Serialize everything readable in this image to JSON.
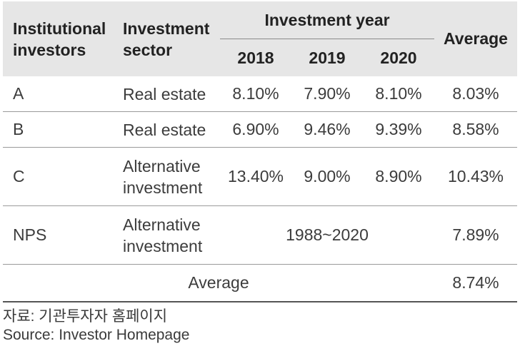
{
  "table": {
    "header": {
      "investors": "Institutional investors",
      "sector": "Investment sector",
      "year_group": "Investment year",
      "years": [
        "2018",
        "2019",
        "2020"
      ],
      "average": "Average"
    },
    "rows": [
      {
        "investor": "A",
        "sector": "Real estate",
        "y2018": "8.10%",
        "y2019": "7.90%",
        "y2020": "8.10%",
        "average": "8.03%"
      },
      {
        "investor": "B",
        "sector": "Real estate",
        "y2018": "6.90%",
        "y2019": "9.46%",
        "y2020": "9.39%",
        "average": "8.58%"
      },
      {
        "investor": "C",
        "sector": "Alternative investment",
        "y2018": "13.40%",
        "y2019": "9.00%",
        "y2020": "8.90%",
        "average": "10.43%"
      },
      {
        "investor": "NPS",
        "sector": "Alternative investment",
        "period": "1988~2020",
        "average": "7.89%"
      }
    ],
    "footer": {
      "label": "Average",
      "value": "8.74%"
    }
  },
  "source": {
    "korean": "자료: 기관투자자 홈페이지",
    "english": "Source: Investor Homepage"
  }
}
